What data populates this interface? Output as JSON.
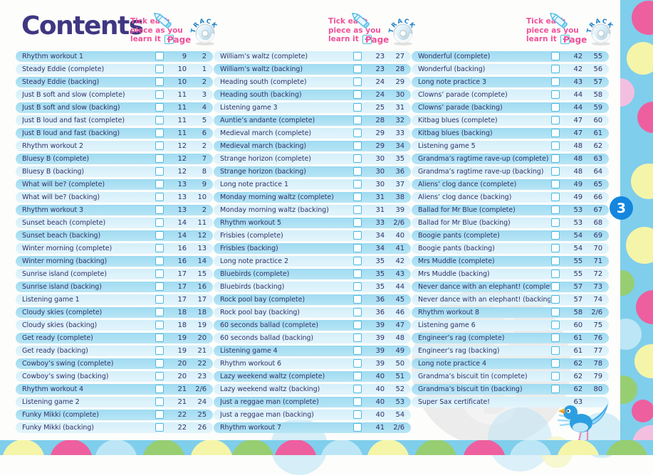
{
  "page": {
    "title": "Contents",
    "page_number": "3"
  },
  "column_header": {
    "tick_line1": "Tick each",
    "tick_line2": "piece as you",
    "tick_line3": "learn it",
    "tick_mark": "✓",
    "page_label": "Page",
    "track_label": "TRACK"
  },
  "columns": [
    {
      "entries": [
        {
          "title": "Rhythm workout 1",
          "page": "9",
          "track": "2",
          "checkbox": true
        },
        {
          "title": "Steady Eddie (complete)",
          "page": "10",
          "track": "1",
          "checkbox": true
        },
        {
          "title": "Steady Eddie (backing)",
          "page": "10",
          "track": "2",
          "checkbox": true
        },
        {
          "title": "Just B soft and slow (complete)",
          "page": "11",
          "track": "3",
          "checkbox": true
        },
        {
          "title": "Just B soft and slow (backing)",
          "page": "11",
          "track": "4",
          "checkbox": true
        },
        {
          "title": "Just B loud and fast (complete)",
          "page": "11",
          "track": "5",
          "checkbox": true
        },
        {
          "title": "Just B loud and fast (backing)",
          "page": "11",
          "track": "6",
          "checkbox": true
        },
        {
          "title": "Rhythm workout 2",
          "page": "12",
          "track": "2",
          "checkbox": true
        },
        {
          "title": "Bluesy B (complete)",
          "page": "12",
          "track": "7",
          "checkbox": true
        },
        {
          "title": "Bluesy B (backing)",
          "page": "12",
          "track": "8",
          "checkbox": true
        },
        {
          "title": "What will be? (complete)",
          "page": "13",
          "track": "9",
          "checkbox": true
        },
        {
          "title": "What will be? (backing)",
          "page": "13",
          "track": "10",
          "checkbox": true
        },
        {
          "title": "Rhythm workout 3",
          "page": "13",
          "track": "2",
          "checkbox": true
        },
        {
          "title": "Sunset beach (complete)",
          "page": "14",
          "track": "11",
          "checkbox": true
        },
        {
          "title": "Sunset beach (backing)",
          "page": "14",
          "track": "12",
          "checkbox": true
        },
        {
          "title": "Winter morning (complete)",
          "page": "16",
          "track": "13",
          "checkbox": true
        },
        {
          "title": "Winter morning (backing)",
          "page": "16",
          "track": "14",
          "checkbox": true
        },
        {
          "title": "Sunrise island (complete)",
          "page": "17",
          "track": "15",
          "checkbox": true
        },
        {
          "title": "Sunrise island (backing)",
          "page": "17",
          "track": "16",
          "checkbox": true
        },
        {
          "title": "Listening game 1",
          "page": "17",
          "track": "17",
          "checkbox": true
        },
        {
          "title": "Cloudy skies (complete)",
          "page": "18",
          "track": "18",
          "checkbox": true
        },
        {
          "title": "Cloudy skies (backing)",
          "page": "18",
          "track": "19",
          "checkbox": true
        },
        {
          "title": "Get ready (complete)",
          "page": "19",
          "track": "20",
          "checkbox": true
        },
        {
          "title": "Get ready (backing)",
          "page": "19",
          "track": "21",
          "checkbox": true
        },
        {
          "title": "Cowboy’s swing (complete)",
          "page": "20",
          "track": "22",
          "checkbox": true
        },
        {
          "title": "Cowboy’s swing (backing)",
          "page": "20",
          "track": "23",
          "checkbox": true
        },
        {
          "title": "Rhythm workout 4",
          "page": "21",
          "track": "2/6",
          "checkbox": true
        },
        {
          "title": "Listening game 2",
          "page": "21",
          "track": "24",
          "checkbox": true
        },
        {
          "title": "Funky Mikki (complete)",
          "page": "22",
          "track": "25",
          "checkbox": true
        },
        {
          "title": "Funky Mikki (backing)",
          "page": "22",
          "track": "26",
          "checkbox": true
        }
      ]
    },
    {
      "entries": [
        {
          "title": "William’s waltz (complete)",
          "page": "23",
          "track": "27",
          "checkbox": true
        },
        {
          "title": "William’s waltz (backing)",
          "page": "23",
          "track": "28",
          "checkbox": true
        },
        {
          "title": "Heading south (complete)",
          "page": "24",
          "track": "29",
          "checkbox": true
        },
        {
          "title": "Heading south (backing)",
          "page": "24",
          "track": "30",
          "checkbox": true
        },
        {
          "title": "Listening game 3",
          "page": "25",
          "track": "31",
          "checkbox": true
        },
        {
          "title": "Auntie’s andante (complete)",
          "page": "28",
          "track": "32",
          "checkbox": true
        },
        {
          "title": "Medieval march (complete)",
          "page": "29",
          "track": "33",
          "checkbox": true
        },
        {
          "title": "Medieval march (backing)",
          "page": "29",
          "track": "34",
          "checkbox": true
        },
        {
          "title": "Strange horizon (complete)",
          "page": "30",
          "track": "35",
          "checkbox": true
        },
        {
          "title": "Strange horizon (backing)",
          "page": "30",
          "track": "36",
          "checkbox": true
        },
        {
          "title": "Long note practice 1",
          "page": "30",
          "track": "37",
          "checkbox": true
        },
        {
          "title": "Monday morning waltz (complete)",
          "page": "31",
          "track": "38",
          "checkbox": true
        },
        {
          "title": "Monday morning waltz (backing)",
          "page": "31",
          "track": "39",
          "checkbox": true
        },
        {
          "title": "Rhythm workout 5",
          "page": "33",
          "track": "2/6",
          "checkbox": true
        },
        {
          "title": "Frisbies (complete)",
          "page": "34",
          "track": "40",
          "checkbox": true
        },
        {
          "title": "Frisbies (backing)",
          "page": "34",
          "track": "41",
          "checkbox": true
        },
        {
          "title": "Long note practice 2",
          "page": "35",
          "track": "42",
          "checkbox": true
        },
        {
          "title": "Bluebirds (complete)",
          "page": "35",
          "track": "43",
          "checkbox": true
        },
        {
          "title": "Bluebirds (backing)",
          "page": "35",
          "track": "44",
          "checkbox": true
        },
        {
          "title": "Rock pool bay (complete)",
          "page": "36",
          "track": "45",
          "checkbox": true
        },
        {
          "title": "Rock pool bay (backing)",
          "page": "36",
          "track": "46",
          "checkbox": true
        },
        {
          "title": "60 seconds ballad (complete)",
          "page": "39",
          "track": "47",
          "checkbox": true
        },
        {
          "title": "60 seconds ballad (backing)",
          "page": "39",
          "track": "48",
          "checkbox": true
        },
        {
          "title": "Listening game 4",
          "page": "39",
          "track": "49",
          "checkbox": true
        },
        {
          "title": "Rhythm workout 6",
          "page": "39",
          "track": "50",
          "checkbox": true
        },
        {
          "title": "Lazy weekend waltz (complete)",
          "page": "40",
          "track": "51",
          "checkbox": true
        },
        {
          "title": "Lazy weekend waltz (backing)",
          "page": "40",
          "track": "52",
          "checkbox": true
        },
        {
          "title": "Just a reggae man (complete)",
          "page": "40",
          "track": "53",
          "checkbox": true
        },
        {
          "title": "Just a reggae man (backing)",
          "page": "40",
          "track": "54",
          "checkbox": true
        },
        {
          "title": "Rhythm workout 7",
          "page": "41",
          "track": "2/6",
          "checkbox": true
        }
      ]
    },
    {
      "entries": [
        {
          "title": "Wonderful (complete)",
          "page": "42",
          "track": "55",
          "checkbox": true
        },
        {
          "title": "Wonderful (backing)",
          "page": "42",
          "track": "56",
          "checkbox": true
        },
        {
          "title": "Long note practice 3",
          "page": "43",
          "track": "57",
          "checkbox": true
        },
        {
          "title": "Clowns’ parade (complete)",
          "page": "44",
          "track": "58",
          "checkbox": true
        },
        {
          "title": "Clowns’ parade (backing)",
          "page": "44",
          "track": "59",
          "checkbox": true
        },
        {
          "title": "Kitbag blues (complete)",
          "page": "47",
          "track": "60",
          "checkbox": true
        },
        {
          "title": "Kitbag blues (backing)",
          "page": "47",
          "track": "61",
          "checkbox": true
        },
        {
          "title": "Listening game 5",
          "page": "48",
          "track": "62",
          "checkbox": true
        },
        {
          "title": "Grandma’s ragtime rave-up (complete)",
          "page": "48",
          "track": "63",
          "checkbox": true
        },
        {
          "title": "Grandma’s ragtime rave-up (backing)",
          "page": "48",
          "track": "64",
          "checkbox": true
        },
        {
          "title": "Aliens’ clog dance (complete)",
          "page": "49",
          "track": "65",
          "checkbox": true
        },
        {
          "title": "Aliens’ clog dance (backing)",
          "page": "49",
          "track": "66",
          "checkbox": true
        },
        {
          "title": "Ballad for Mr Blue (complete)",
          "page": "53",
          "track": "67",
          "checkbox": true
        },
        {
          "title": "Ballad for Mr Blue (backing)",
          "page": "53",
          "track": "68",
          "checkbox": true
        },
        {
          "title": "Boogie pants (complete)",
          "page": "54",
          "track": "69",
          "checkbox": true
        },
        {
          "title": "Boogie pants (backing)",
          "page": "54",
          "track": "70",
          "checkbox": true
        },
        {
          "title": "Mrs Muddle (complete)",
          "page": "55",
          "track": "71",
          "checkbox": true
        },
        {
          "title": "Mrs Muddle (backing)",
          "page": "55",
          "track": "72",
          "checkbox": true
        },
        {
          "title": "Never dance with an elephant! (complete)",
          "page": "57",
          "track": "73",
          "checkbox": true
        },
        {
          "title": "Never dance with an elephant! (backing)",
          "page": "57",
          "track": "74",
          "checkbox": true
        },
        {
          "title": "Rhythm workout 8",
          "page": "58",
          "track": "2/6",
          "checkbox": true
        },
        {
          "title": "Listening game 6",
          "page": "60",
          "track": "75",
          "checkbox": true
        },
        {
          "title": "Engineer’s rag (complete)",
          "page": "61",
          "track": "76",
          "checkbox": true
        },
        {
          "title": "Engineer’s rag (backing)",
          "page": "61",
          "track": "77",
          "checkbox": true
        },
        {
          "title": "Long note practice 4",
          "page": "62",
          "track": "78",
          "checkbox": true
        },
        {
          "title": "Grandma’s biscuit tin (complete)",
          "page": "62",
          "track": "79",
          "checkbox": true
        },
        {
          "title": "Grandma’s biscuit tin (backing)",
          "page": "62",
          "track": "80",
          "checkbox": true
        },
        {
          "title": "Super Sax certificate!",
          "page": "63",
          "track": "",
          "checkbox": false
        }
      ]
    }
  ],
  "colors": {
    "title_navy": "#3F3782",
    "text_navy": "#333168",
    "accent_pink": "#F0509A",
    "row_dark": "#A7DEF2",
    "row_light": "#D9F1FB",
    "checkbox_teal": "#4FB9DE",
    "strip_blue": "#7FCEEC",
    "badge_blue": "#1486DE",
    "dot_yellow": "#F5F5A9",
    "dot_pink": "#EE5F9F",
    "dot_light_pink": "#F3BFE0",
    "dot_green": "#97CE72",
    "dot_light_blue": "#BCE6F5"
  }
}
